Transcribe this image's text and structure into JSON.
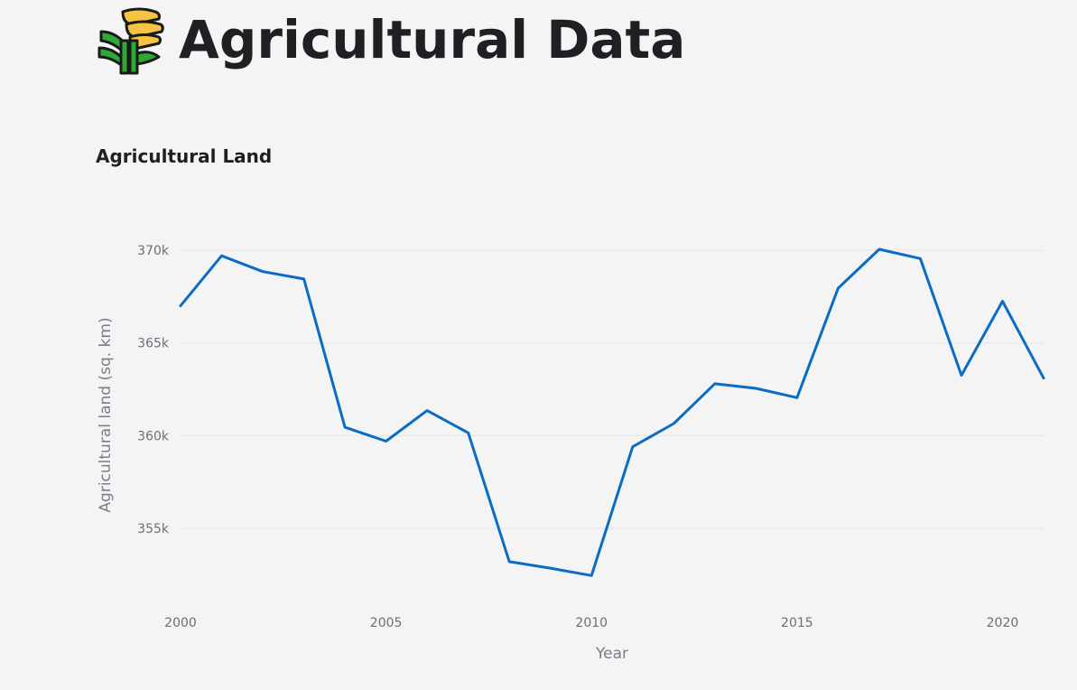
{
  "header": {
    "title": "Agricultural Data",
    "icon": "sheaf-of-wheat-icon"
  },
  "colors": {
    "background": "#f4f4f5",
    "line": "#0a6cc4",
    "grid": "#e3e3e6"
  },
  "chart_data": {
    "type": "line",
    "title": "Agricultural Land",
    "xlabel": "Year",
    "ylabel": "Agricultural land (sq. km)",
    "grid": true,
    "xlim": [
      2000,
      2021
    ],
    "ylim": [
      351200,
      372000
    ],
    "xticks": [
      2000,
      2005,
      2010,
      2015,
      2020
    ],
    "xtick_labels": [
      "2000",
      "2005",
      "2010",
      "2015",
      "2020"
    ],
    "yticks": [
      355000,
      360000,
      365000,
      370000
    ],
    "ytick_labels": [
      "355k",
      "360k",
      "365k",
      "370k"
    ],
    "series": [
      {
        "x": [
          2000,
          2001,
          2002,
          2003,
          2004,
          2005,
          2006,
          2007,
          2008,
          2009,
          2010,
          2011,
          2012,
          2013,
          2014,
          2015,
          2016,
          2017,
          2018,
          2019,
          2020,
          2021
        ],
        "values": [
          367000,
          369700,
          368850,
          368450,
          360450,
          359700,
          361350,
          360150,
          353200,
          352850,
          352450,
          359400,
          360650,
          362800,
          362550,
          362050,
          367950,
          370050,
          369550,
          363250,
          367250,
          363100
        ]
      }
    ]
  }
}
